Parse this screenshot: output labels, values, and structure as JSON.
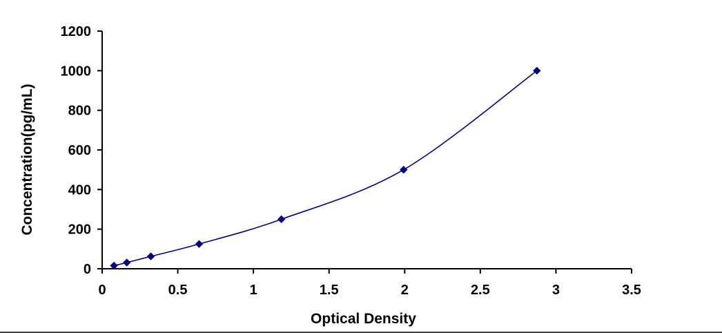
{
  "chart_data": {
    "type": "scatter",
    "xlabel": "Optical Density",
    "ylabel": "Concentration(pg/mL)",
    "xlim": [
      0,
      3.5
    ],
    "ylim": [
      0,
      1200
    ],
    "x_ticks": [
      0,
      0.5,
      1,
      1.5,
      2,
      2.5,
      3,
      3.5
    ],
    "y_ticks": [
      0,
      200,
      400,
      600,
      800,
      1000,
      1200
    ],
    "x_tick_labels": [
      "0",
      "0.5",
      "1",
      "1.5",
      "2",
      "2.5",
      "3",
      "3.5"
    ],
    "y_tick_labels": [
      "0",
      "200",
      "400",
      "600",
      "800",
      "1000",
      "1200"
    ],
    "grid": false,
    "legend": "none",
    "series": [
      {
        "marker": "diamond",
        "line": "smooth",
        "color": "#00007F",
        "x": [
          0.078,
          0.163,
          0.322,
          0.641,
          1.185,
          1.993,
          2.874
        ],
        "y": [
          15.6,
          31.2,
          62.5,
          125,
          250,
          500,
          1000
        ]
      }
    ]
  }
}
